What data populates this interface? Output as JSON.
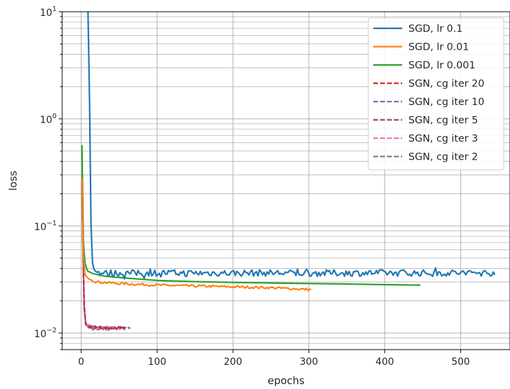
{
  "chart_data": {
    "type": "line",
    "xlabel": "epochs",
    "ylabel": "loss",
    "xlim": [
      -25,
      565
    ],
    "ylim": [
      0.007,
      10
    ],
    "yscale": "log",
    "grid": true,
    "legend_position": "top-right",
    "x_ticks": [
      0,
      100,
      200,
      300,
      400,
      500
    ],
    "x_tick_labels": [
      "0",
      "100",
      "200",
      "300",
      "400",
      "500"
    ],
    "y_ticks": [
      0.01,
      0.1,
      1,
      10
    ],
    "y_tick_labels": [
      {
        "base": "10",
        "exp": "−2"
      },
      {
        "base": "10",
        "exp": "−1"
      },
      {
        "base": "10",
        "exp": "0"
      },
      {
        "base": "10",
        "exp": "1"
      }
    ],
    "series": [
      {
        "name": "SGD, lr 0.1",
        "color": "#1f77b4",
        "dash": "solid",
        "points": [
          [
            9,
            10
          ],
          [
            10,
            5
          ],
          [
            11,
            1.5
          ],
          [
            12,
            0.4
          ],
          [
            13,
            0.1
          ],
          [
            14,
            0.05
          ],
          [
            16,
            0.04
          ],
          [
            20,
            0.037
          ],
          [
            30,
            0.036
          ],
          [
            40,
            0.0365
          ],
          [
            60,
            0.0362
          ],
          [
            100,
            0.0365
          ],
          [
            150,
            0.0363
          ],
          [
            200,
            0.0364
          ],
          [
            250,
            0.0365
          ],
          [
            300,
            0.0363
          ],
          [
            350,
            0.0364
          ],
          [
            400,
            0.0365
          ],
          [
            450,
            0.0364
          ],
          [
            500,
            0.0365
          ],
          [
            545,
            0.0365
          ]
        ],
        "noise": 0.07
      },
      {
        "name": "SGD, lr 0.01",
        "color": "#ff7f0e",
        "dash": "solid",
        "points": [
          [
            1,
            0.28
          ],
          [
            2,
            0.1
          ],
          [
            3,
            0.05
          ],
          [
            5,
            0.035
          ],
          [
            10,
            0.032
          ],
          [
            20,
            0.03
          ],
          [
            50,
            0.029
          ],
          [
            100,
            0.028
          ],
          [
            150,
            0.0275
          ],
          [
            200,
            0.027
          ],
          [
            250,
            0.0265
          ],
          [
            300,
            0.0255
          ],
          [
            303,
            0.0255
          ]
        ],
        "noise": 0.025
      },
      {
        "name": "SGD, lr 0.001",
        "color": "#2ca02c",
        "dash": "solid",
        "points": [
          [
            1,
            0.57
          ],
          [
            2,
            0.2
          ],
          [
            3,
            0.07
          ],
          [
            5,
            0.045
          ],
          [
            8,
            0.038
          ],
          [
            15,
            0.036
          ],
          [
            30,
            0.034
          ],
          [
            50,
            0.033
          ],
          [
            100,
            0.031
          ],
          [
            150,
            0.0302
          ],
          [
            200,
            0.0297
          ],
          [
            250,
            0.0293
          ],
          [
            300,
            0.029
          ],
          [
            350,
            0.0287
          ],
          [
            400,
            0.0283
          ],
          [
            448,
            0.028
          ]
        ],
        "noise": 0.0
      },
      {
        "name": "SGN, cg iter 20",
        "color": "#d62728",
        "dash": "dashed",
        "points": [
          [
            1,
            0.25
          ],
          [
            2,
            0.1
          ],
          [
            3,
            0.04
          ],
          [
            4,
            0.018
          ],
          [
            6,
            0.012
          ],
          [
            10,
            0.0113
          ],
          [
            20,
            0.0112
          ],
          [
            30,
            0.0111
          ],
          [
            40,
            0.0111
          ],
          [
            50,
            0.0112
          ],
          [
            60,
            0.0111
          ]
        ],
        "noise": 0.025
      },
      {
        "name": "SGN, cg iter 10",
        "color": "#9467bd",
        "dash": "dashed",
        "points": [
          [
            1,
            0.26
          ],
          [
            2,
            0.1
          ],
          [
            3,
            0.04
          ],
          [
            4,
            0.018
          ],
          [
            6,
            0.012
          ],
          [
            10,
            0.0112
          ],
          [
            20,
            0.011
          ],
          [
            30,
            0.0109
          ],
          [
            40,
            0.011
          ],
          [
            50,
            0.011
          ],
          [
            58,
            0.011
          ]
        ],
        "noise": 0.035
      },
      {
        "name": "SGN, cg iter 5",
        "color": "#8c564b",
        "dash": "dashed",
        "points": [
          [
            1,
            0.22
          ],
          [
            2,
            0.09
          ],
          [
            3,
            0.035
          ],
          [
            4,
            0.017
          ],
          [
            6,
            0.012
          ],
          [
            10,
            0.0115
          ],
          [
            20,
            0.0113
          ],
          [
            30,
            0.0112
          ],
          [
            40,
            0.0112
          ],
          [
            50,
            0.0111
          ]
        ],
        "noise": 0.02
      },
      {
        "name": "SGN, cg iter 3",
        "color": "#e377c2",
        "dash": "dashed",
        "points": [
          [
            1,
            0.3
          ],
          [
            2,
            0.1
          ],
          [
            3,
            0.04
          ],
          [
            4,
            0.018
          ],
          [
            6,
            0.0125
          ],
          [
            10,
            0.0115
          ],
          [
            20,
            0.0113
          ],
          [
            30,
            0.0112
          ],
          [
            45,
            0.0112
          ]
        ],
        "noise": 0.02
      },
      {
        "name": "SGN, cg iter 2",
        "color": "#7f7f7f",
        "dash": "dashed",
        "points": [
          [
            1,
            0.23
          ],
          [
            2,
            0.09
          ],
          [
            3,
            0.035
          ],
          [
            4,
            0.017
          ],
          [
            6,
            0.0125
          ],
          [
            10,
            0.0118
          ],
          [
            20,
            0.0115
          ],
          [
            30,
            0.0114
          ],
          [
            40,
            0.0113
          ],
          [
            50,
            0.0112
          ],
          [
            65,
            0.0112
          ]
        ],
        "noise": 0.015
      }
    ]
  }
}
